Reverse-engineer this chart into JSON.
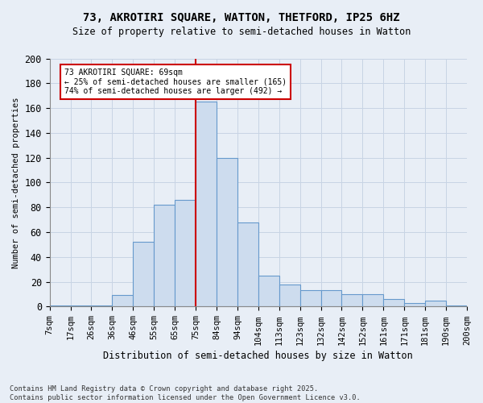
{
  "title_line1": "73, AKROTIRI SQUARE, WATTON, THETFORD, IP25 6HZ",
  "title_line2": "Size of property relative to semi-detached houses in Watton",
  "xlabel": "Distribution of semi-detached houses by size in Watton",
  "ylabel": "Number of semi-detached properties",
  "footer_line1": "Contains HM Land Registry data © Crown copyright and database right 2025.",
  "footer_line2": "Contains public sector information licensed under the Open Government Licence v3.0.",
  "bin_labels": [
    "7sqm",
    "17sqm",
    "26sqm",
    "36sqm",
    "46sqm",
    "55sqm",
    "65sqm",
    "75sqm",
    "84sqm",
    "94sqm",
    "104sqm",
    "113sqm",
    "123sqm",
    "132sqm",
    "142sqm",
    "152sqm",
    "161sqm",
    "171sqm",
    "181sqm",
    "190sqm",
    "200sqm"
  ],
  "values": [
    1,
    1,
    1,
    9,
    52,
    82,
    86,
    165,
    120,
    68,
    25,
    18,
    13,
    13,
    10,
    10,
    6,
    3,
    5,
    1
  ],
  "bar_color": "#cddcee",
  "bar_edge_color": "#6699cc",
  "grid_color": "#c8d4e4",
  "background_color": "#e8eef6",
  "vline_color": "#cc0000",
  "annotation_text": "73 AKROTIRI SQUARE: 69sqm\n← 25% of semi-detached houses are smaller (165)\n74% of semi-detached houses are larger (492) →",
  "ylim": [
    0,
    200
  ],
  "yticks": [
    0,
    20,
    40,
    60,
    80,
    100,
    120,
    140,
    160,
    180,
    200
  ]
}
